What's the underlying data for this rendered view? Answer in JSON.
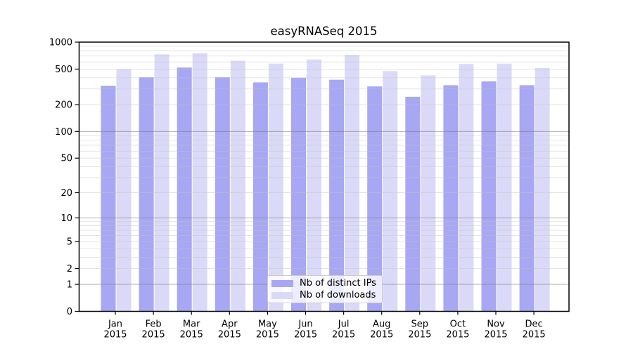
{
  "chart_data": {
    "type": "bar",
    "title": "easyRNASeq 2015",
    "categories": [
      "Jan 2015",
      "Feb 2015",
      "Mar 2015",
      "Apr 2015",
      "May 2015",
      "Jun 2015",
      "Jul 2015",
      "Aug 2015",
      "Sep 2015",
      "Oct 2015",
      "Nov 2015",
      "Dec 2015"
    ],
    "series": [
      {
        "name": "Nb of distinct IPs",
        "color": "#a7a7f3",
        "values": [
          325,
          405,
          520,
          405,
          355,
          400,
          380,
          320,
          245,
          330,
          365,
          330
        ]
      },
      {
        "name": "Nb of downloads",
        "color": "#dadaf8",
        "values": [
          500,
          730,
          750,
          620,
          575,
          640,
          720,
          475,
          425,
          570,
          575,
          515
        ]
      }
    ],
    "yscale": "log1p",
    "ylim": [
      0,
      1000
    ],
    "yticks": [
      0,
      1,
      2,
      5,
      10,
      20,
      50,
      100,
      200,
      500,
      1000
    ],
    "major_gridlines": [
      1,
      10,
      100
    ],
    "minor_gridlines": [
      2,
      3,
      4,
      5,
      6,
      7,
      8,
      9,
      20,
      30,
      40,
      50,
      60,
      70,
      80,
      90,
      200,
      300,
      400,
      500,
      600,
      700,
      800,
      900
    ],
    "grid": "on",
    "legend_position": "lower center inside",
    "xlabel": "",
    "ylabel": ""
  }
}
